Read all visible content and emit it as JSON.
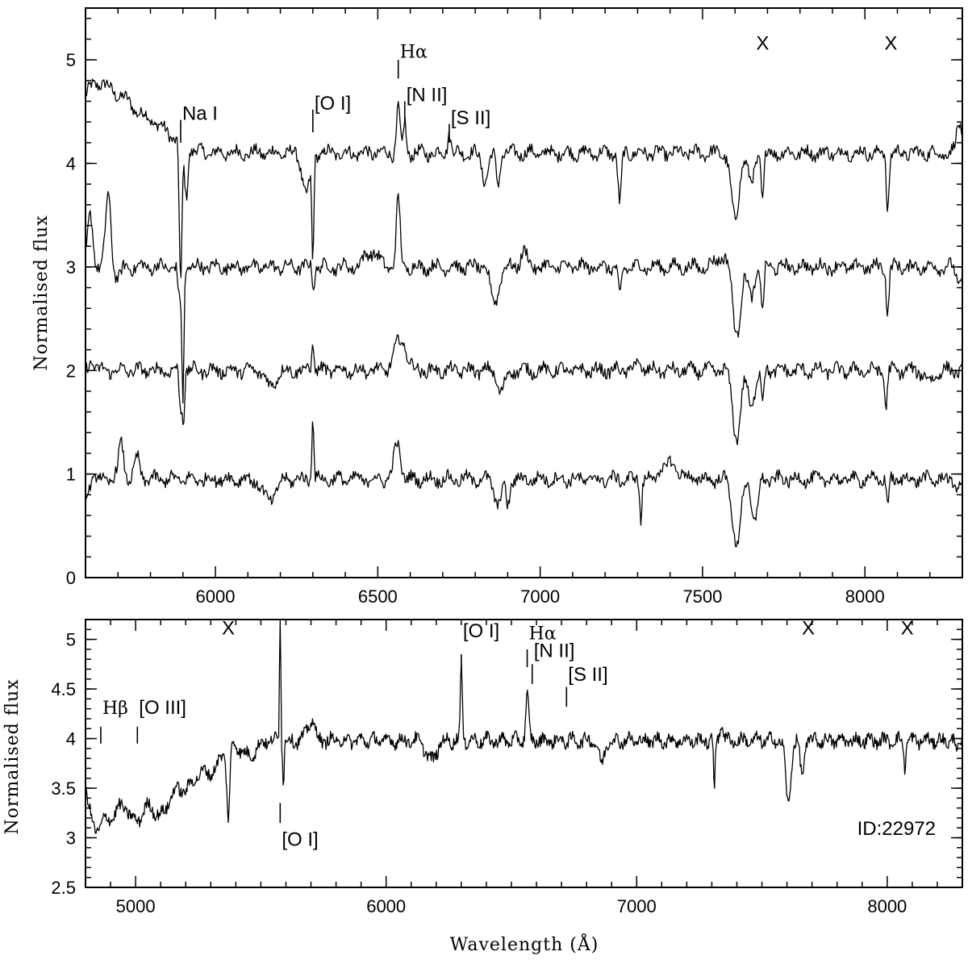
{
  "chart_data": [
    {
      "type": "line",
      "ylabel": "Normalised flux",
      "xlabel": "",
      "xlim": [
        5600,
        8300
      ],
      "ylim": [
        0,
        5.5
      ],
      "xticks": [
        6000,
        6500,
        7000,
        7500,
        8000
      ],
      "yticks": [
        0,
        1,
        2,
        3,
        4,
        5
      ],
      "xtick_labels": [
        "6000",
        "6500",
        "7000",
        "7500",
        "8000"
      ],
      "ytick_labels": [
        "0",
        "1",
        "2",
        "3",
        "4",
        "5"
      ],
      "grid": false,
      "series": [
        {
          "offset": 4.1,
          "features": [
            {
              "x": 5605,
              "d": 0.35
            },
            {
              "x": 5650,
              "d": 0.4
            },
            {
              "x": 5720,
              "d": 0.4
            },
            {
              "x": 5800,
              "d": 0.25
            },
            {
              "x": 5870,
              "d": 0.1
            },
            {
              "x": 5893,
              "d": -1.4,
              "w": 4
            },
            {
              "x": 5910,
              "d": -0.5,
              "w": 5
            },
            {
              "x": 6280,
              "d": -0.4,
              "w": 12
            },
            {
              "x": 6300,
              "d": -1.0,
              "w": 3
            },
            {
              "x": 6563,
              "d": 0.45,
              "w": 5
            },
            {
              "x": 6583,
              "d": 0.3,
              "w": 4
            },
            {
              "x": 6720,
              "d": 0.2,
              "w": 5
            },
            {
              "x": 6830,
              "d": -0.25,
              "w": 10
            },
            {
              "x": 6870,
              "d": -0.3,
              "w": 6
            },
            {
              "x": 7245,
              "d": -0.5,
              "w": 5
            },
            {
              "x": 7600,
              "d": -0.65,
              "w": 12
            },
            {
              "x": 7650,
              "d": -0.3,
              "w": 10
            },
            {
              "x": 7685,
              "d": -0.45,
              "w": 4
            },
            {
              "x": 8070,
              "d": -0.55,
              "w": 4
            },
            {
              "x": 8290,
              "d": 0.3,
              "w": 8
            }
          ]
        },
        {
          "offset": 3.0,
          "features": [
            {
              "x": 5615,
              "d": 0.5,
              "w": 8
            },
            {
              "x": 5670,
              "d": 0.7,
              "w": 8
            },
            {
              "x": 5700,
              "d": -0.1,
              "w": 10
            },
            {
              "x": 5890,
              "d": -0.35,
              "w": 5
            },
            {
              "x": 5900,
              "d": -1.3,
              "w": 3
            },
            {
              "x": 6302,
              "d": -0.2,
              "w": 3
            },
            {
              "x": 6563,
              "d": 0.65,
              "w": 6
            },
            {
              "x": 6480,
              "d": 0.15,
              "w": 20
            },
            {
              "x": 6860,
              "d": -0.35,
              "w": 12
            },
            {
              "x": 6950,
              "d": 0.15,
              "w": 10
            },
            {
              "x": 7245,
              "d": -0.3,
              "w": 5
            },
            {
              "x": 7560,
              "d": 0.1,
              "w": 20
            },
            {
              "x": 7605,
              "d": -0.65,
              "w": 12
            },
            {
              "x": 7650,
              "d": -0.3,
              "w": 10
            },
            {
              "x": 7685,
              "d": -0.45,
              "w": 4
            },
            {
              "x": 8070,
              "d": -0.45,
              "w": 4
            },
            {
              "x": 8290,
              "d": -0.15,
              "w": 8
            }
          ]
        },
        {
          "offset": 2.0,
          "features": [
            {
              "x": 5620,
              "d": 0.1,
              "w": 8
            },
            {
              "x": 5893,
              "d": -0.4,
              "w": 4
            },
            {
              "x": 5902,
              "d": -0.45,
              "w": 3
            },
            {
              "x": 6170,
              "d": -0.15,
              "w": 15
            },
            {
              "x": 6300,
              "d": 0.35,
              "w": 3
            },
            {
              "x": 6570,
              "d": 0.3,
              "w": 18
            },
            {
              "x": 6880,
              "d": -0.2,
              "w": 12
            },
            {
              "x": 7300,
              "d": 0.05,
              "w": 15
            },
            {
              "x": 7605,
              "d": -0.65,
              "w": 12
            },
            {
              "x": 7650,
              "d": -0.35,
              "w": 10
            },
            {
              "x": 7685,
              "d": -0.3,
              "w": 4
            },
            {
              "x": 8065,
              "d": -0.35,
              "w": 4
            },
            {
              "x": 8200,
              "d": -0.1,
              "w": 15
            }
          ]
        },
        {
          "offset": 0.95,
          "features": [
            {
              "x": 5605,
              "d": -0.15,
              "w": 5
            },
            {
              "x": 5710,
              "d": 0.35,
              "w": 8
            },
            {
              "x": 5760,
              "d": 0.2,
              "w": 8
            },
            {
              "x": 6165,
              "d": -0.2,
              "w": 20
            },
            {
              "x": 6300,
              "d": 0.65,
              "w": 3
            },
            {
              "x": 6560,
              "d": 0.35,
              "w": 10
            },
            {
              "x": 6870,
              "d": -0.25,
              "w": 10
            },
            {
              "x": 6900,
              "d": -0.25,
              "w": 6
            },
            {
              "x": 7310,
              "d": -0.4,
              "w": 3
            },
            {
              "x": 7400,
              "d": 0.15,
              "w": 25
            },
            {
              "x": 7605,
              "d": -0.65,
              "w": 12
            },
            {
              "x": 7660,
              "d": -0.4,
              "w": 10
            },
            {
              "x": 8070,
              "d": -0.25,
              "w": 4
            },
            {
              "x": 8290,
              "d": -0.1,
              "w": 8
            }
          ]
        }
      ],
      "annotations": [
        {
          "text": "Na I",
          "x": 5893,
          "y_text": 4.42,
          "tick_from": 4.2,
          "tick_to": 4.42
        },
        {
          "text": "[O I]",
          "x": 6300,
          "y_text": 4.52,
          "tick_from": 4.3,
          "tick_to": 4.52
        },
        {
          "text": "Hα",
          "x": 6563,
          "y_text": 5.02,
          "tick_from": 4.82,
          "tick_to": 5.0
        },
        {
          "text": "[N II]",
          "x": 6583,
          "y_text": 4.6,
          "tick_from": 4.4,
          "tick_to": 4.6
        },
        {
          "text": "[S II]",
          "x": 6720,
          "y_text": 4.38,
          "tick_from": 4.2,
          "tick_to": 4.38
        },
        {
          "text": "X",
          "x": 7685,
          "y_text": 5.1
        },
        {
          "text": "X",
          "x": 8080,
          "y_text": 5.1
        }
      ]
    },
    {
      "type": "line",
      "ylabel": "Normalised flux",
      "xlabel": "Wavelength (Å)",
      "xlim": [
        4800,
        8300
      ],
      "ylim": [
        2.5,
        5.2
      ],
      "xticks": [
        5000,
        6000,
        7000,
        8000
      ],
      "yticks": [
        2.5,
        3,
        3.5,
        4,
        4.5,
        5
      ],
      "xtick_labels": [
        "5000",
        "6000",
        "7000",
        "8000"
      ],
      "ytick_labels": [
        "2.5",
        "3",
        "3.5",
        "4",
        "4.5",
        "5"
      ],
      "grid": false,
      "series": [
        {
          "offset": 3.98,
          "features": [
            {
              "x": 4830,
              "d": -0.7,
              "w": 30
            },
            {
              "x": 4900,
              "d": -0.7,
              "w": 40
            },
            {
              "x": 5000,
              "d": -0.75,
              "w": 40
            },
            {
              "x": 5100,
              "d": -0.7,
              "w": 40
            },
            {
              "x": 5200,
              "d": -0.45,
              "w": 40
            },
            {
              "x": 5300,
              "d": -0.3,
              "w": 40
            },
            {
              "x": 5370,
              "d": -0.7,
              "w": 6
            },
            {
              "x": 5450,
              "d": -0.15,
              "w": 30
            },
            {
              "x": 5577,
              "d": 2.4,
              "w": 2
            },
            {
              "x": 5590,
              "d": -0.4,
              "w": 3
            },
            {
              "x": 5700,
              "d": 0.2,
              "w": 15
            },
            {
              "x": 6180,
              "d": -0.2,
              "w": 20
            },
            {
              "x": 6300,
              "d": 0.75,
              "w": 4
            },
            {
              "x": 6563,
              "d": 0.45,
              "w": 6
            },
            {
              "x": 6860,
              "d": -0.25,
              "w": 10
            },
            {
              "x": 7310,
              "d": -0.5,
              "w": 3
            },
            {
              "x": 7340,
              "d": 0.2,
              "w": 6
            },
            {
              "x": 7605,
              "d": -0.65,
              "w": 10
            },
            {
              "x": 7660,
              "d": -0.35,
              "w": 8
            },
            {
              "x": 8070,
              "d": -0.25,
              "w": 4
            },
            {
              "x": 8280,
              "d": -0.1,
              "w": 6
            }
          ]
        }
      ],
      "annotations": [
        {
          "text": "Hβ",
          "x": 4861,
          "y_text": 4.25,
          "tick_from": 3.95,
          "tick_to": 4.12
        },
        {
          "text": "[O III]",
          "x": 5007,
          "y_text": 4.25,
          "tick_from": 3.95,
          "tick_to": 4.12
        },
        {
          "text": "X",
          "x": 5370,
          "y_text": 5.05
        },
        {
          "text": "[O I]",
          "x": 5577,
          "y_text": 2.92,
          "tick_from": 3.15,
          "tick_to": 3.35
        },
        {
          "text": "[O I]",
          "x": 6300,
          "y_text": 5.02,
          "tick_from": 4.65,
          "tick_to": 4.85
        },
        {
          "text": "Hα",
          "x": 6563,
          "y_text": 5.0,
          "tick_from": 4.72,
          "tick_to": 4.9
        },
        {
          "text": "[N II]",
          "x": 6583,
          "y_text": 4.82,
          "tick_from": 4.55,
          "tick_to": 4.75
        },
        {
          "text": "[S II]",
          "x": 6720,
          "y_text": 4.58,
          "tick_from": 4.32,
          "tick_to": 4.52
        },
        {
          "text": "X",
          "x": 7685,
          "y_text": 5.05
        },
        {
          "text": "X",
          "x": 8080,
          "y_text": 5.05
        }
      ],
      "id_label": "ID:22972"
    }
  ]
}
